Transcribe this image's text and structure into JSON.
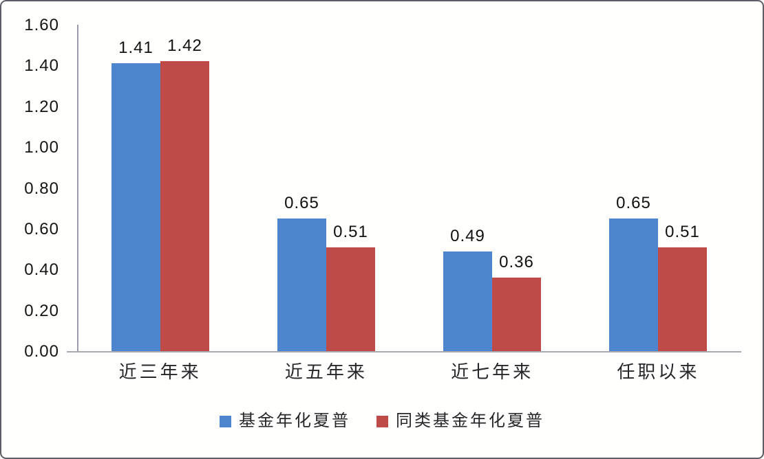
{
  "chart_data": {
    "type": "bar",
    "title": "",
    "xlabel": "",
    "ylabel": "",
    "categories": [
      "近三年来",
      "近五年来",
      "近七年来",
      "任职以来"
    ],
    "series": [
      {
        "name": "基金年化夏普",
        "color": "#4d86cf",
        "values": [
          1.41,
          0.65,
          0.49,
          0.65
        ]
      },
      {
        "name": "同类基金年化夏普",
        "color": "#bf4b48",
        "values": [
          1.42,
          0.51,
          0.36,
          0.51
        ]
      }
    ],
    "ylim": [
      0,
      1.6
    ],
    "y_ticks": [
      "0.00",
      "0.20",
      "0.40",
      "0.60",
      "0.80",
      "1.00",
      "1.20",
      "1.40",
      "1.60"
    ],
    "grid": false,
    "legend_position": "bottom",
    "value_label_decimals": 2,
    "colors": {
      "axis_line": "#9c9ca8",
      "tick_text": "#151515",
      "value_label_text": "#111111",
      "category_text": "#26262b",
      "frame_border": "#5d5d66",
      "background": "#fffffd"
    }
  }
}
